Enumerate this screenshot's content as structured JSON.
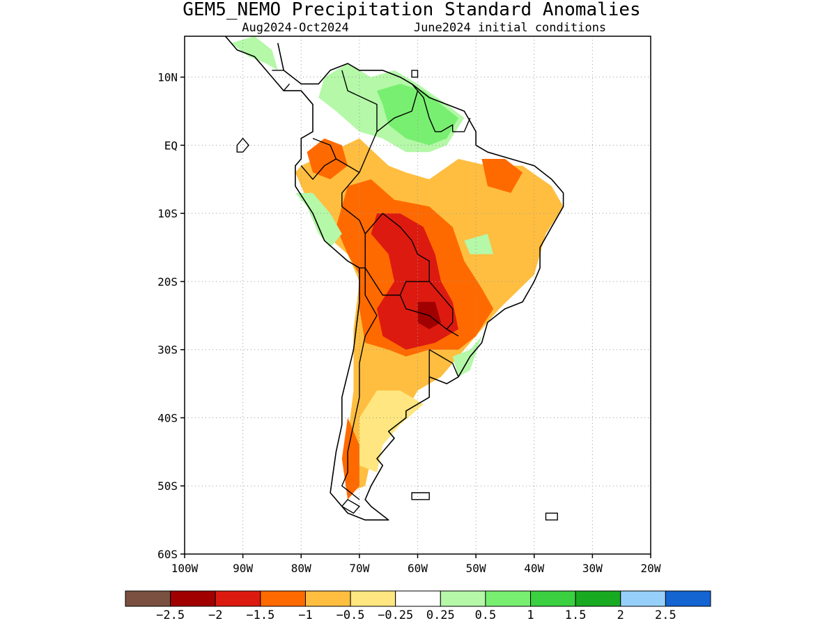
{
  "title": "GEM5_NEMO Precipitation Standard Anomalies",
  "subtitle_left": "Aug2024-Oct2024",
  "subtitle_right": "June2024 initial conditions",
  "map": {
    "lon_range": [
      -100,
      -20
    ],
    "lat_range": [
      -60,
      16
    ],
    "lon_ticks": [
      {
        "value": -100,
        "label": "100W"
      },
      {
        "value": -90,
        "label": "90W"
      },
      {
        "value": -80,
        "label": "80W"
      },
      {
        "value": -70,
        "label": "70W"
      },
      {
        "value": -60,
        "label": "60W"
      },
      {
        "value": -50,
        "label": "50W"
      },
      {
        "value": -40,
        "label": "40W"
      },
      {
        "value": -30,
        "label": "30W"
      },
      {
        "value": -20,
        "label": "20W"
      }
    ],
    "lat_ticks": [
      {
        "value": 10,
        "label": "10N"
      },
      {
        "value": 0,
        "label": "EQ"
      },
      {
        "value": -10,
        "label": "10S"
      },
      {
        "value": -20,
        "label": "20S"
      },
      {
        "value": -30,
        "label": "30S"
      },
      {
        "value": -40,
        "label": "40S"
      },
      {
        "value": -50,
        "label": "50S"
      },
      {
        "value": -60,
        "label": "60S"
      }
    ],
    "grid": "dotted",
    "coastline_color": "#000000"
  },
  "colorbar": {
    "colors": [
      "#7a5040",
      "#a00000",
      "#dd1a10",
      "#ff6a00",
      "#ffbe40",
      "#ffe680",
      "#ffffff",
      "#b4f8a8",
      "#78ef70",
      "#3ad040",
      "#18aa20",
      "#96d0fa",
      "#1464d2"
    ],
    "labels": [
      "-2.5",
      "-2",
      "-1.5",
      "-1",
      "-0.5",
      "-0.25",
      "0.25",
      "0.5",
      "1",
      "1.5",
      "2",
      "2.5"
    ]
  },
  "anomaly_regions": [
    {
      "level": "-0.5",
      "color": "#ffbe40",
      "polygon": [
        [
          -80,
          -3
        ],
        [
          -75,
          -1
        ],
        [
          -70,
          1
        ],
        [
          -65,
          -3
        ],
        [
          -62,
          -4
        ],
        [
          -58,
          -5
        ],
        [
          -53,
          -2
        ],
        [
          -48,
          -3
        ],
        [
          -42,
          -3
        ],
        [
          -37,
          -6
        ],
        [
          -35,
          -9
        ],
        [
          -38,
          -13
        ],
        [
          -40,
          -19
        ],
        [
          -46,
          -24
        ],
        [
          -50,
          -28
        ],
        [
          -53,
          -31
        ],
        [
          -56,
          -34
        ],
        [
          -60,
          -36
        ],
        [
          -62,
          -39
        ],
        [
          -66,
          -42
        ],
        [
          -68,
          -46
        ],
        [
          -69,
          -50
        ],
        [
          -72,
          -51
        ],
        [
          -72,
          -43
        ],
        [
          -71,
          -36
        ],
        [
          -71,
          -27
        ],
        [
          -70,
          -20
        ],
        [
          -72,
          -16
        ],
        [
          -76,
          -13
        ],
        [
          -79,
          -8
        ],
        [
          -81,
          -4
        ]
      ]
    },
    {
      "level": "-0.25",
      "color": "#ffe680",
      "polygon": [
        [
          -67,
          -36
        ],
        [
          -63,
          -36
        ],
        [
          -59,
          -38
        ],
        [
          -63,
          -41
        ],
        [
          -66,
          -44
        ],
        [
          -67,
          -48
        ],
        [
          -70,
          -47
        ],
        [
          -70,
          -40
        ]
      ]
    },
    {
      "level": "-1",
      "color": "#ff6a00",
      "polygon": [
        [
          -72,
          -6
        ],
        [
          -68,
          -5
        ],
        [
          -64,
          -8
        ],
        [
          -58,
          -9
        ],
        [
          -54,
          -12
        ],
        [
          -52,
          -17
        ],
        [
          -49,
          -21
        ],
        [
          -47,
          -24
        ],
        [
          -50,
          -28
        ],
        [
          -53,
          -30
        ],
        [
          -58,
          -30
        ],
        [
          -62,
          -31
        ],
        [
          -65,
          -30
        ],
        [
          -69,
          -29
        ],
        [
          -70,
          -24
        ],
        [
          -70,
          -19
        ],
        [
          -72,
          -16
        ],
        [
          -74,
          -12
        ]
      ]
    },
    {
      "level": "-1",
      "color": "#ff6a00",
      "polygon": [
        [
          -79,
          -1
        ],
        [
          -76,
          1
        ],
        [
          -73,
          0
        ],
        [
          -72,
          -3
        ],
        [
          -75,
          -5
        ],
        [
          -78,
          -4
        ]
      ]
    },
    {
      "level": "-1",
      "color": "#ff6a00",
      "polygon": [
        [
          -49,
          -2
        ],
        [
          -45,
          -2
        ],
        [
          -42,
          -4
        ],
        [
          -44,
          -7
        ],
        [
          -48,
          -6
        ]
      ]
    },
    {
      "level": "-1",
      "color": "#ff6a00",
      "polygon": [
        [
          -72,
          -40
        ],
        [
          -70,
          -44
        ],
        [
          -70,
          -50
        ],
        [
          -72,
          -52
        ],
        [
          -73,
          -46
        ]
      ]
    },
    {
      "level": "-1.5",
      "color": "#dd1a10",
      "polygon": [
        [
          -67,
          -10
        ],
        [
          -63,
          -10
        ],
        [
          -59,
          -12
        ],
        [
          -57,
          -16
        ],
        [
          -56,
          -20
        ],
        [
          -54,
          -23
        ],
        [
          -53,
          -27
        ],
        [
          -57,
          -29
        ],
        [
          -62,
          -30
        ],
        [
          -66,
          -28
        ],
        [
          -67,
          -24
        ],
        [
          -64,
          -20
        ],
        [
          -65,
          -16
        ],
        [
          -68,
          -13
        ]
      ]
    },
    {
      "level": "-2",
      "color": "#a00000",
      "polygon": [
        [
          -60,
          -23
        ],
        [
          -57,
          -23
        ],
        [
          -56,
          -26
        ],
        [
          -58,
          -27
        ],
        [
          -60,
          -26
        ]
      ]
    },
    {
      "level": "0.5",
      "color": "#b4f8a8",
      "polygon": [
        [
          -76,
          10
        ],
        [
          -72,
          12
        ],
        [
          -68,
          10
        ],
        [
          -64,
          11
        ],
        [
          -60,
          9
        ],
        [
          -55,
          6
        ],
        [
          -52,
          4
        ],
        [
          -55,
          0
        ],
        [
          -58,
          -1
        ],
        [
          -62,
          -1
        ],
        [
          -66,
          1
        ],
        [
          -70,
          2
        ],
        [
          -74,
          5
        ],
        [
          -77,
          7
        ]
      ]
    },
    {
      "level": "1",
      "color": "#78ef70",
      "polygon": [
        [
          -67,
          8
        ],
        [
          -63,
          9
        ],
        [
          -59,
          8
        ],
        [
          -56,
          6
        ],
        [
          -53,
          4
        ],
        [
          -55,
          1
        ],
        [
          -58,
          0
        ],
        [
          -62,
          1
        ],
        [
          -65,
          3
        ],
        [
          -66,
          6
        ]
      ]
    },
    {
      "level": "0.5",
      "color": "#b4f8a8",
      "polygon": [
        [
          -81,
          -7
        ],
        [
          -79,
          -9
        ],
        [
          -77,
          -13
        ],
        [
          -75,
          -15
        ],
        [
          -73,
          -13
        ],
        [
          -75,
          -10
        ],
        [
          -78,
          -7
        ]
      ]
    },
    {
      "level": "0.5",
      "color": "#b4f8a8",
      "polygon": [
        [
          -92,
          15
        ],
        [
          -88,
          16
        ],
        [
          -85,
          14
        ],
        [
          -84,
          11
        ],
        [
          -86,
          12
        ],
        [
          -89,
          13
        ]
      ]
    },
    {
      "level": "0.5",
      "color": "#b4f8a8",
      "polygon": [
        [
          -54,
          -31
        ],
        [
          -51,
          -30
        ],
        [
          -49,
          -28
        ],
        [
          -51,
          -33
        ],
        [
          -53,
          -34
        ]
      ]
    },
    {
      "level": "0.5",
      "color": "#b4f8a8",
      "polygon": [
        [
          -52,
          -14
        ],
        [
          -48,
          -13
        ],
        [
          -47,
          -16
        ],
        [
          -51,
          -16
        ]
      ]
    }
  ],
  "coastlines": [
    [
      [
        -84,
        15
      ],
      [
        -83,
        11
      ],
      [
        -80,
        9
      ],
      [
        -77,
        9
      ],
      [
        -75,
        11
      ],
      [
        -72,
        12
      ],
      [
        -70,
        11
      ],
      [
        -66,
        11
      ],
      [
        -63,
        10
      ],
      [
        -61,
        9
      ],
      [
        -58,
        7
      ],
      [
        -55,
        6
      ],
      [
        -52,
        5
      ],
      [
        -50,
        2
      ],
      [
        -50,
        0
      ],
      [
        -48,
        -1
      ],
      [
        -44,
        -2
      ],
      [
        -40,
        -3
      ],
      [
        -37,
        -5
      ],
      [
        -35,
        -7
      ],
      [
        -35,
        -9
      ],
      [
        -37,
        -12
      ],
      [
        -39,
        -15
      ],
      [
        -39,
        -18
      ],
      [
        -40,
        -20
      ],
      [
        -42,
        -23
      ],
      [
        -45,
        -24
      ],
      [
        -48,
        -26
      ],
      [
        -49,
        -29
      ],
      [
        -51,
        -31
      ],
      [
        -53,
        -34
      ],
      [
        -55,
        -35
      ],
      [
        -58,
        -34
      ],
      [
        -58,
        -37
      ],
      [
        -62,
        -39
      ],
      [
        -62,
        -40
      ],
      [
        -65,
        -42
      ],
      [
        -64,
        -43
      ],
      [
        -67,
        -46
      ],
      [
        -66,
        -47
      ],
      [
        -68,
        -50
      ],
      [
        -69,
        -52
      ],
      [
        -68,
        -53
      ],
      [
        -65,
        -55
      ],
      [
        -69,
        -55
      ],
      [
        -72,
        -54
      ],
      [
        -75,
        -51
      ],
      [
        -74,
        -45
      ],
      [
        -73,
        -41
      ],
      [
        -73,
        -37
      ],
      [
        -71,
        -30
      ],
      [
        -70,
        -23
      ],
      [
        -70,
        -18
      ],
      [
        -72,
        -17
      ],
      [
        -76,
        -14
      ],
      [
        -78,
        -10
      ],
      [
        -81,
        -6
      ],
      [
        -81,
        -3
      ],
      [
        -80,
        -2
      ],
      [
        -80,
        1
      ],
      [
        -78,
        2
      ],
      [
        -78,
        6
      ],
      [
        -80,
        8
      ],
      [
        -83,
        8
      ],
      [
        -86,
        11
      ],
      [
        -88,
        13
      ],
      [
        -91,
        14
      ],
      [
        -93,
        16
      ]
    ]
  ],
  "borders": [
    [
      [
        -73,
        11
      ],
      [
        -72,
        8
      ],
      [
        -67,
        6
      ],
      [
        -67,
        2
      ],
      [
        -70,
        -4
      ]
    ],
    [
      [
        -78,
        1
      ],
      [
        -75,
        0
      ],
      [
        -74,
        -2
      ],
      [
        -70,
        -4
      ]
    ],
    [
      [
        -80,
        -3
      ],
      [
        -78,
        -5
      ],
      [
        -76,
        -3
      ],
      [
        -74,
        -2
      ]
    ],
    [
      [
        -70,
        -4
      ],
      [
        -73,
        -7
      ],
      [
        -73,
        -9
      ],
      [
        -70,
        -11
      ],
      [
        -69,
        -13
      ],
      [
        -69,
        -18
      ],
      [
        -70,
        -18
      ]
    ],
    [
      [
        -69,
        -13
      ],
      [
        -66,
        -10
      ],
      [
        -63,
        -12
      ],
      [
        -61,
        -14
      ],
      [
        -60,
        -16
      ],
      [
        -58,
        -17
      ],
      [
        -58,
        -20
      ],
      [
        -62,
        -20
      ],
      [
        -63,
        -22
      ],
      [
        -66,
        -22
      ],
      [
        -69,
        -18
      ]
    ],
    [
      [
        -63,
        -22
      ],
      [
        -62,
        -24
      ],
      [
        -58,
        -25
      ],
      [
        -55,
        -27
      ],
      [
        -54,
        -26
      ],
      [
        -54,
        -24
      ],
      [
        -56,
        -22
      ],
      [
        -58,
        -20
      ]
    ],
    [
      [
        -69,
        -18
      ],
      [
        -69,
        -22
      ],
      [
        -67,
        -25
      ],
      [
        -69,
        -28
      ],
      [
        -70,
        -32
      ],
      [
        -70,
        -37
      ],
      [
        -71,
        -41
      ],
      [
        -72,
        -45
      ],
      [
        -72,
        -48
      ],
      [
        -73,
        -50
      ],
      [
        -70,
        -52
      ]
    ],
    [
      [
        -58,
        -30
      ],
      [
        -56,
        -31
      ],
      [
        -54,
        -32
      ],
      [
        -53,
        -34
      ]
    ],
    [
      [
        -58,
        -30
      ],
      [
        -58,
        -34
      ]
    ],
    [
      [
        -53,
        -28
      ],
      [
        -55,
        -27
      ]
    ],
    [
      [
        -67,
        2
      ],
      [
        -64,
        4
      ],
      [
        -61,
        5
      ],
      [
        -60,
        8
      ],
      [
        -61,
        9
      ]
    ],
    [
      [
        -60,
        8
      ],
      [
        -59,
        7
      ],
      [
        -58,
        4
      ],
      [
        -57,
        2
      ],
      [
        -56,
        2
      ],
      [
        -54,
        3
      ],
      [
        -54,
        2
      ],
      [
        -52,
        2
      ],
      [
        -51,
        4
      ]
    ],
    [
      [
        -83,
        8
      ],
      [
        -82,
        9
      ]
    ],
    [
      [
        -85,
        11
      ],
      [
        -83,
        11
      ]
    ]
  ],
  "islands": [
    [
      [
        -61,
        -51
      ],
      [
        -58,
        -51
      ],
      [
        -58,
        -52
      ],
      [
        -61,
        -52
      ]
    ],
    [
      [
        -38,
        -54
      ],
      [
        -36,
        -54
      ],
      [
        -36,
        -55
      ],
      [
        -38,
        -55
      ]
    ],
    [
      [
        -91,
        0
      ],
      [
        -90,
        1
      ],
      [
        -89,
        0
      ],
      [
        -90,
        -1
      ],
      [
        -91,
        -1
      ]
    ],
    [
      [
        -61,
        11
      ],
      [
        -60,
        11
      ],
      [
        -60,
        10
      ],
      [
        -61,
        10
      ]
    ],
    [
      [
        -72,
        -52
      ],
      [
        -70,
        -53
      ],
      [
        -71,
        -54
      ],
      [
        -73,
        -53
      ]
    ]
  ]
}
